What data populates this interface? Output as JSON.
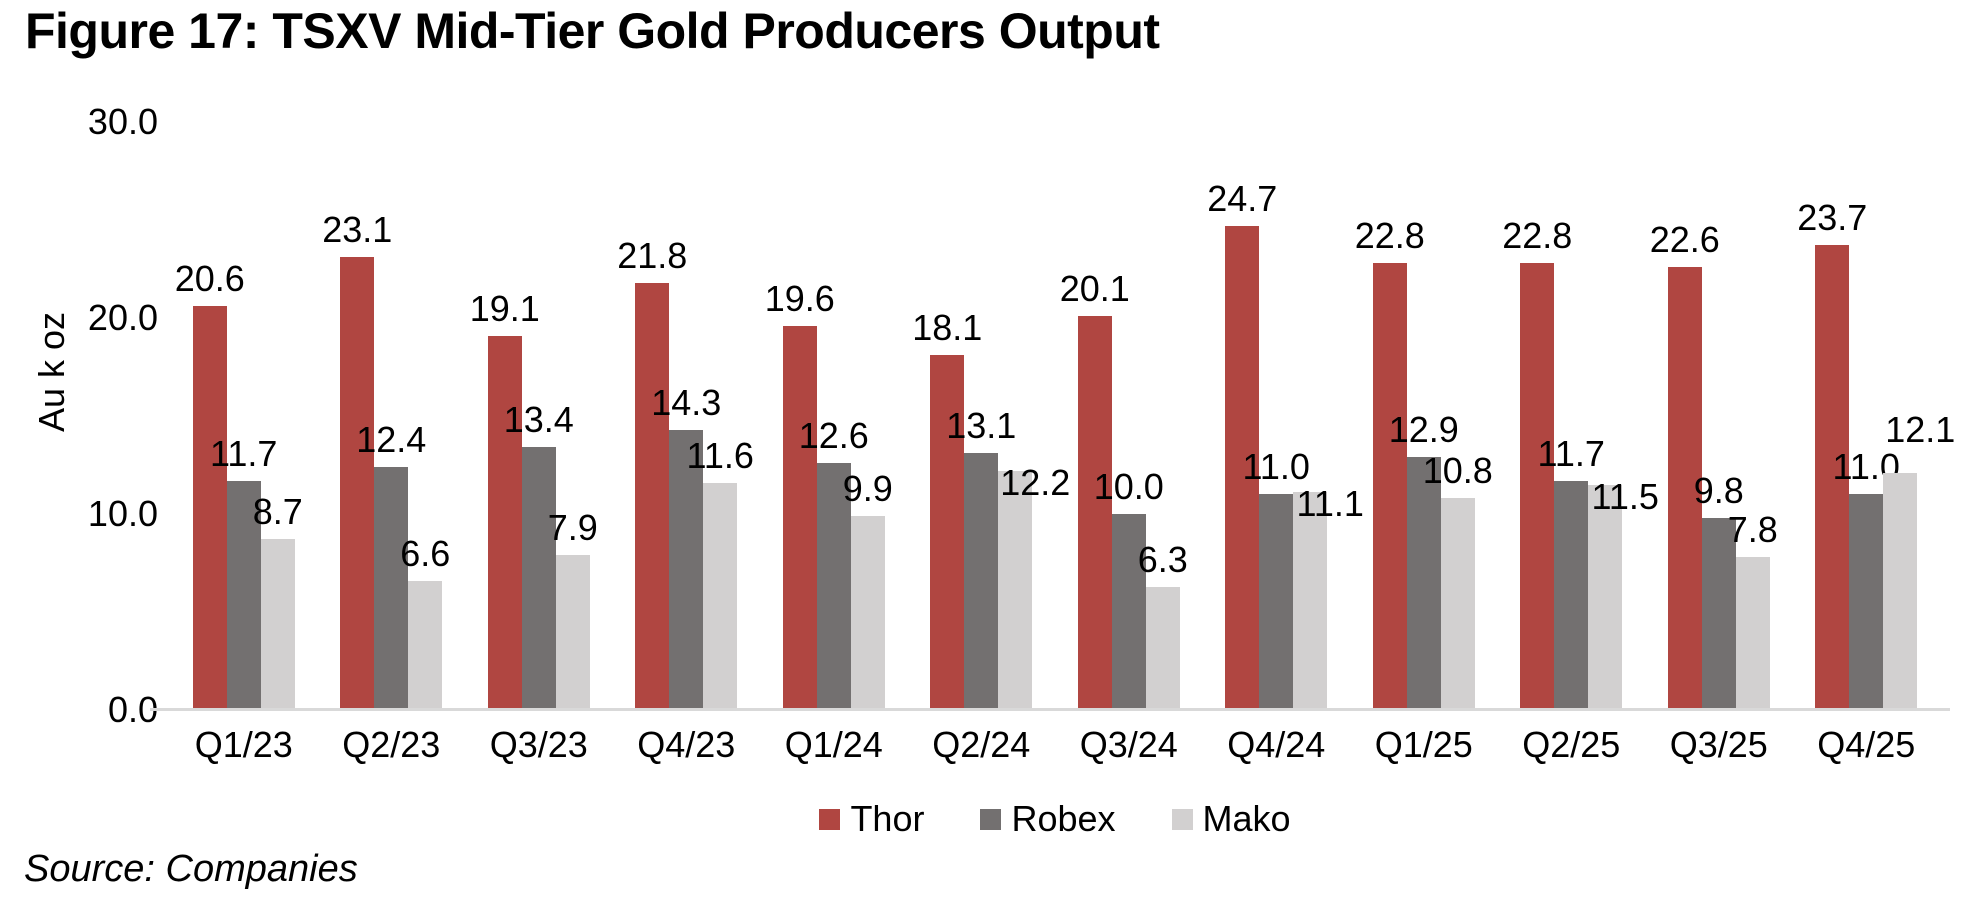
{
  "title": "Figure 17: TSXV Mid-Tier Gold Producers Output",
  "source_note": "Source: Companies",
  "chart_data": {
    "type": "bar",
    "title": "Figure 17: TSXV Mid-Tier Gold Producers Output",
    "xlabel": "",
    "ylabel": "Au k oz",
    "ylim": [
      0,
      30
    ],
    "ytick_labels": [
      "0.0",
      "10.0",
      "20.0",
      "30.0"
    ],
    "grid": false,
    "legend_position": "bottom",
    "data_labels": true,
    "categories": [
      "Q1/23",
      "Q2/23",
      "Q3/23",
      "Q4/23",
      "Q1/24",
      "Q2/24",
      "Q3/24",
      "Q4/24",
      "Q1/25",
      "Q2/25",
      "Q3/25",
      "Q4/25"
    ],
    "series": [
      {
        "name": "Thor",
        "color": "#b04641",
        "values": [
          20.6,
          23.1,
          19.1,
          21.8,
          19.6,
          18.1,
          20.1,
          24.7,
          22.8,
          22.8,
          22.6,
          23.7
        ]
      },
      {
        "name": "Robex",
        "color": "#737070",
        "values": [
          11.7,
          12.4,
          13.4,
          14.3,
          12.6,
          13.1,
          10.0,
          11.0,
          12.9,
          11.7,
          9.8,
          11.0
        ]
      },
      {
        "name": "Mako",
        "color": "#d2d0d0",
        "values": [
          8.7,
          6.6,
          7.9,
          11.6,
          9.9,
          12.2,
          6.3,
          11.1,
          10.8,
          11.5,
          7.8,
          12.1
        ]
      }
    ],
    "axis_line_color": "#d9d9d9",
    "text_color": "#000000"
  }
}
